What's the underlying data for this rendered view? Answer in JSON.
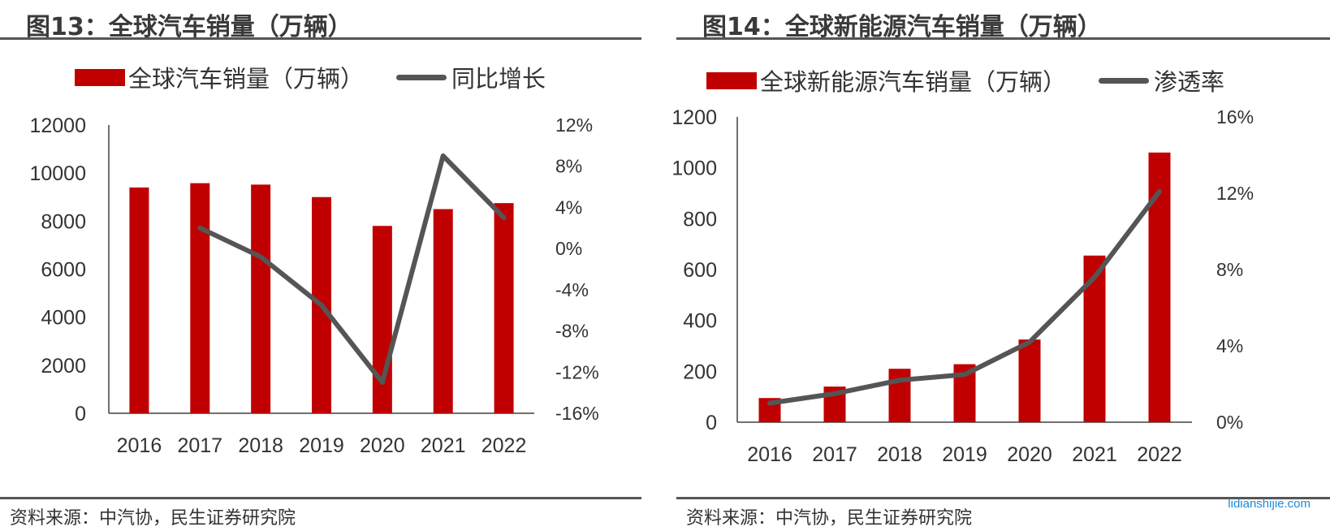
{
  "colors": {
    "bar": "#c00000",
    "line": "#555555",
    "axis": "#404040"
  },
  "charts": [
    {
      "fig_title": "图13：全球汽车销量（万辆）",
      "source": "资料来源：中汽协，民生证券研究院",
      "legend_bar": "全球汽车销量（万辆）",
      "legend_line": "同比增长"
    },
    {
      "fig_title": "图14：全球新能源汽车销量（万辆）",
      "source": "资料来源：中汽协，民生证券研究院",
      "legend_bar": "全球新能源汽车销量（万辆）",
      "legend_line": "渗透率"
    }
  ],
  "watermark": "lidianshijie.com",
  "chart_data": [
    {
      "type": "bar",
      "categories": [
        "2016",
        "2017",
        "2018",
        "2019",
        "2020",
        "2021",
        "2022"
      ],
      "series": [
        {
          "name": "全球汽车销量（万辆）",
          "type": "bar",
          "axis": "left",
          "values": [
            9400,
            9580,
            9520,
            9000,
            7800,
            8500,
            8750
          ]
        },
        {
          "name": "同比增长",
          "type": "line",
          "axis": "right",
          "values": [
            null,
            2.0,
            -0.8,
            -5.5,
            -13.0,
            9.0,
            3.0
          ]
        }
      ],
      "ylim_left": [
        0,
        12000
      ],
      "yticks_left": [
        "0",
        "2000",
        "4000",
        "6000",
        "8000",
        "10000",
        "12000"
      ],
      "ylim_right": [
        -16,
        12
      ],
      "yticks_right": [
        "-16%",
        "-12%",
        "-8%",
        "-4%",
        "0%",
        "4%",
        "8%",
        "12%"
      ],
      "legend_position": "top",
      "grid": false
    },
    {
      "type": "bar",
      "categories": [
        "2016",
        "2017",
        "2018",
        "2019",
        "2020",
        "2021",
        "2022"
      ],
      "series": [
        {
          "name": "全球新能源汽车销量（万辆）",
          "type": "bar",
          "axis": "left",
          "values": [
            95,
            140,
            210,
            228,
            325,
            655,
            1060
          ]
        },
        {
          "name": "渗透率",
          "type": "line",
          "axis": "right",
          "values": [
            1.0,
            1.5,
            2.2,
            2.5,
            4.2,
            7.6,
            12.1
          ]
        }
      ],
      "ylim_left": [
        0,
        1200
      ],
      "yticks_left": [
        "0",
        "200",
        "400",
        "600",
        "800",
        "1000",
        "1200"
      ],
      "ylim_right": [
        0,
        16
      ],
      "yticks_right": [
        "0%",
        "4%",
        "8%",
        "12%",
        "16%"
      ],
      "legend_position": "top",
      "grid": false
    }
  ]
}
